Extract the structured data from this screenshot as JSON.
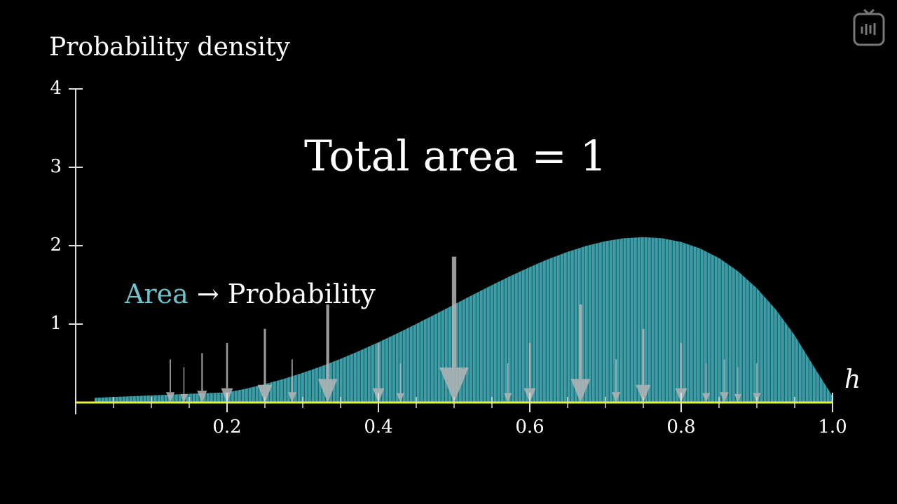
{
  "chart_data": {
    "type": "area",
    "ylabel": "Probability density",
    "xlabel": "h",
    "annotation": "Total area = 1",
    "area_word": "Area",
    "area_rest": "→ Probability",
    "color": "#3b9ea8",
    "axis_color": "#e8f040",
    "x": [
      0.025,
      0.05,
      0.075,
      0.1,
      0.125,
      0.15,
      0.175,
      0.2,
      0.225,
      0.25,
      0.275,
      0.3,
      0.325,
      0.35,
      0.375,
      0.4,
      0.425,
      0.45,
      0.475,
      0.5,
      0.525,
      0.55,
      0.575,
      0.6,
      0.625,
      0.65,
      0.675,
      0.7,
      0.725,
      0.75,
      0.775,
      0.8,
      0.825,
      0.85,
      0.875,
      0.9,
      0.925,
      0.95,
      0.975,
      1.0
    ],
    "values": [
      0.06,
      0.07,
      0.08,
      0.09,
      0.1,
      0.11,
      0.12,
      0.13,
      0.1766,
      0.2344,
      0.3016,
      0.378,
      0.4634,
      0.5574,
      0.6592,
      0.768,
      0.8828,
      1.0024,
      1.1253,
      1.25,
      1.3747,
      1.4974,
      1.6159,
      1.728,
      1.8311,
      1.9224,
      1.9991,
      2.058,
      2.0959,
      2.1094,
      2.0947,
      2.048,
      1.9653,
      1.8424,
      1.6748,
      1.458,
      1.1872,
      0.8574,
      0.4634,
      0.08
    ],
    "arrows": {
      "x": [
        0.125,
        0.143,
        0.167,
        0.2,
        0.25,
        0.286,
        0.333,
        0.4,
        0.429,
        0.5,
        0.571,
        0.6,
        0.667,
        0.714,
        0.75,
        0.8,
        0.833,
        0.857,
        0.875,
        0.9
      ],
      "values": [
        0.55,
        0.45,
        0.63,
        0.76,
        0.94,
        0.55,
        1.25,
        0.76,
        0.5,
        1.86,
        0.5,
        0.76,
        1.25,
        0.55,
        0.94,
        0.76,
        0.5,
        0.55,
        0.45,
        0.5
      ],
      "color": "#b5b5b5"
    },
    "xlim": [
      0,
      1
    ],
    "ylim": [
      0,
      4
    ],
    "xticks": [
      0.2,
      0.4,
      0.6,
      0.8,
      {
        "value": 1,
        "label": "1.0"
      }
    ],
    "x_minor_ticks": [
      0.05,
      0.1,
      0.15,
      0.25,
      0.3,
      0.35,
      0.45,
      0.5,
      0.55,
      0.65,
      0.7,
      0.75,
      0.85,
      0.9,
      0.95
    ],
    "yticks": [
      1,
      2,
      3,
      4
    ]
  }
}
